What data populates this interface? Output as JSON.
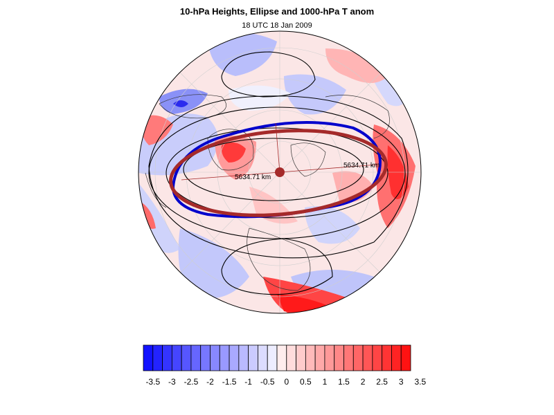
{
  "title": "10-hPa Heights, Ellipse and 1000-hPa T anom",
  "subtitle": "18 UTC 18 Jan 2009",
  "map": {
    "projection": "polar stereographic, North Pole",
    "distance_labels": [
      "5634.71 km",
      "5634.71 km"
    ],
    "colors": {
      "warm": "#ff1a1a",
      "cool": "#1a1aff",
      "ellipse": "#a52a2a",
      "vortex_edge": "#0000cc",
      "contours": "#000000"
    }
  },
  "colorbar": {
    "tick_labels": [
      "-3.5",
      "-3",
      "-2.5",
      "-2",
      "-1.5",
      "-1",
      "-0.5",
      "0",
      "0.5",
      "1",
      "1.5",
      "2",
      "2.5",
      "3",
      "3.5"
    ],
    "min": -3.5,
    "max": 3.5,
    "step": 0.25
  }
}
